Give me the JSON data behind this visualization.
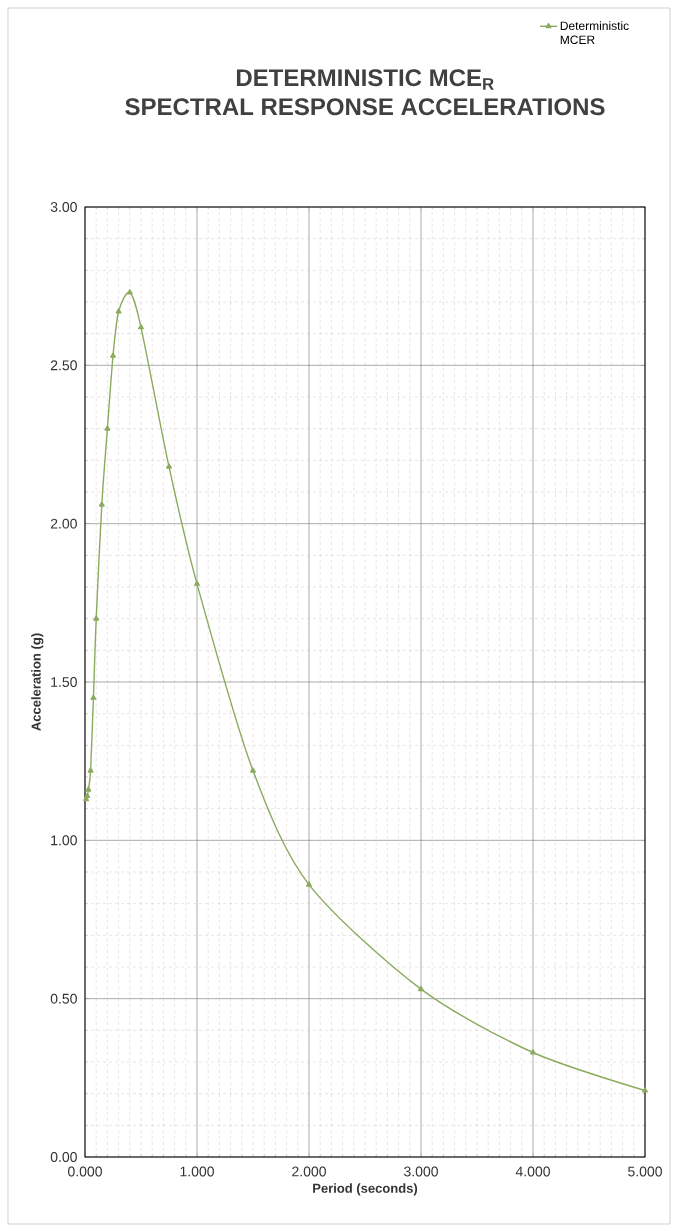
{
  "chart_data": {
    "type": "line",
    "title": "DETERMINISTIC MCE$_{R}$",
    "subtitle": "SPECTRAL RESPONSE ACCELERATIONS",
    "xlabel": "Period (seconds)",
    "ylabel": "Acceleration (g)",
    "series": [
      {
        "name": "Deterministic MCER",
        "color": "#8aab5e",
        "x": [
          0.01,
          0.02,
          0.03,
          0.05,
          0.075,
          0.1,
          0.15,
          0.2,
          0.25,
          0.3,
          0.4,
          0.5,
          0.75,
          1,
          1.5,
          2,
          3,
          4,
          5
        ],
        "values": [
          1.13,
          1.14,
          1.16,
          1.22,
          1.45,
          1.7,
          2.06,
          2.3,
          2.53,
          2.67,
          2.73,
          2.62,
          2.18,
          1.81,
          1.22,
          0.86,
          0.53,
          0.33,
          0.21
        ]
      }
    ],
    "xlim": [
      0,
      5
    ],
    "ylim": [
      0,
      3
    ],
    "xticks": [
      {
        "value": 0,
        "label": "0.000"
      },
      {
        "value": 1,
        "label": "1.000"
      },
      {
        "value": 2,
        "label": "2.000"
      },
      {
        "value": 3,
        "label": "3.000"
      },
      {
        "value": 4,
        "label": "4.000"
      },
      {
        "value": 5,
        "label": "5.000"
      }
    ],
    "yticks": [
      {
        "value": 0,
        "label": "0.00"
      },
      {
        "value": 0.5,
        "label": "0.50"
      },
      {
        "value": 1,
        "label": "1.00"
      },
      {
        "value": 1.5,
        "label": "1.50"
      },
      {
        "value": 2,
        "label": "2.00"
      },
      {
        "value": 2.5,
        "label": "2.50"
      },
      {
        "value": 3,
        "label": "3.00"
      }
    ],
    "grid": true,
    "legend": "top right",
    "marker": "triangle",
    "line_style": "solid"
  }
}
